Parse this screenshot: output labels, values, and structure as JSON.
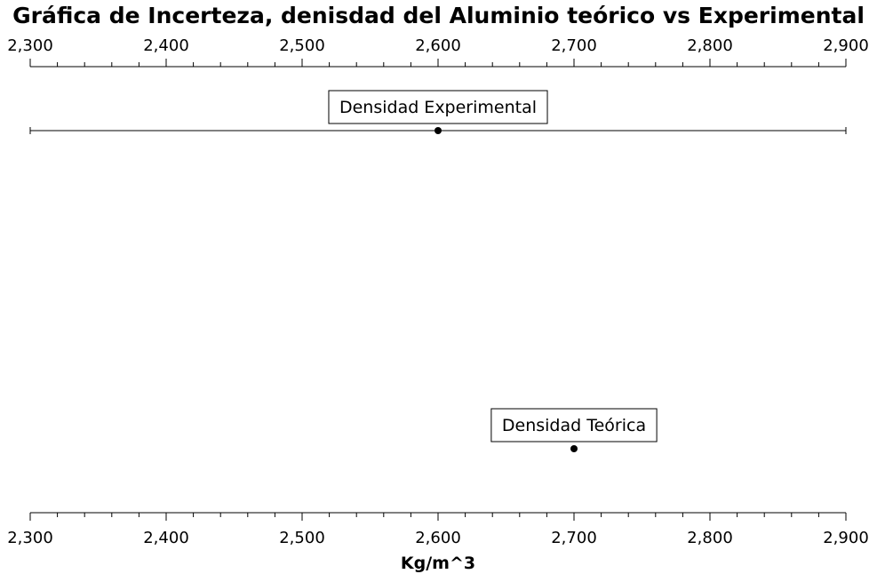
{
  "chart_data": {
    "type": "scatter",
    "title": "Gráfica de Incerteza, denisdad del Aluminio teórico vs Experimental",
    "xlabel": "Kg/m^3",
    "ylabel": "",
    "xlim": [
      2300,
      2900
    ],
    "x_ticks": [
      2300,
      2400,
      2500,
      2600,
      2700,
      2800,
      2900
    ],
    "x_tick_labels": [
      "2,300",
      "2,400",
      "2,500",
      "2,600",
      "2,700",
      "2,800",
      "2,900"
    ],
    "minor_ticks_per_major": 5,
    "grid": false,
    "points": [
      {
        "label": "Densidad Experimental",
        "x": 2600,
        "error_low": 2300,
        "error_high": 2900
      },
      {
        "label": "Densidad Teórica",
        "x": 2700
      }
    ]
  }
}
